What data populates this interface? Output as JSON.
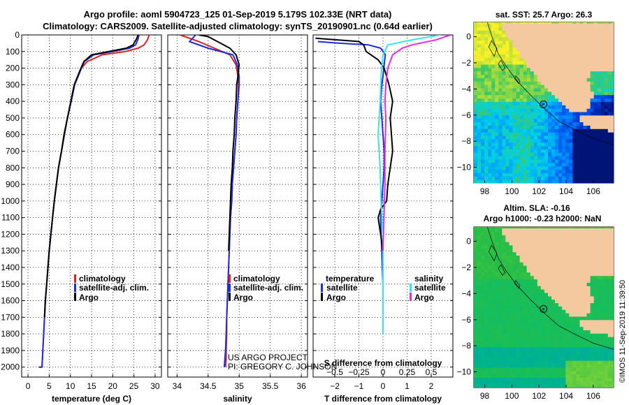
{
  "figure": {
    "title_line1": "Argo profile: aoml 5904723_125 01-Sep-2019 5.179S 102.33E (NRT data)",
    "title_line2": "Climatology: CARS2009. Satellite-adjusted climatology: synTS_20190901.nc (0.64d earlier)",
    "project_line1": "US ARGO PROJECT",
    "project_line2": "PI: GREGORY C. JOHNSON",
    "imos_stamp": "©IMOS 11-Sep-2019 11:39:50"
  },
  "colors": {
    "climatology": "#e02020",
    "satellite": "#1a2de0",
    "argo": "#000000",
    "satellite_salinity": "#33e6f0",
    "argo_salinity": "#e030e0",
    "land": "#f5c9a0"
  },
  "chart_data": [
    {
      "type": "line",
      "title": "",
      "xlabel": "temperature (deg C)",
      "ylabel": "",
      "xlim": [
        -1.5,
        31.5
      ],
      "ylim": [
        2060,
        0
      ],
      "xticks": [
        0,
        5,
        10,
        15,
        20,
        25,
        30
      ],
      "yticks": [
        0,
        100,
        200,
        300,
        400,
        500,
        600,
        700,
        800,
        900,
        1000,
        1100,
        1200,
        1300,
        1400,
        1500,
        1600,
        1700,
        1800,
        1900,
        2000
      ],
      "legend": [
        "climatology",
        "satellite-adj. clim.",
        "Argo"
      ],
      "series": [
        {
          "name": "climatology",
          "color_key": "climatology",
          "x": [
            28.6,
            28.2,
            27.4,
            26.0,
            23.0,
            17.5,
            14.0,
            12.6,
            11.8,
            11.0,
            10.2,
            9.3,
            8.6,
            7.9,
            7.2,
            6.7,
            6.2,
            5.8,
            5.4,
            5.0,
            4.7,
            4.4,
            4.1,
            3.9,
            3.7,
            3.5,
            3.3,
            3.1,
            2.8,
            2.6
          ],
          "y": [
            0,
            30,
            60,
            80,
            100,
            120,
            160,
            200,
            250,
            300,
            400,
            500,
            600,
            700,
            800,
            900,
            1000,
            1100,
            1200,
            1300,
            1400,
            1500,
            1600,
            1700,
            1800,
            1900,
            2000,
            2000,
            2000,
            2000
          ]
        },
        {
          "name": "satellite-adj. clim.",
          "color_key": "satellite",
          "x": [
            26.2,
            25.9,
            25.4,
            24.0,
            20.0,
            15.5,
            13.3,
            12.6,
            11.8,
            11.0,
            10.2,
            9.3,
            8.6,
            7.9,
            7.2,
            6.7,
            6.2,
            5.8,
            5.4,
            5.0,
            4.7,
            4.4,
            4.1,
            3.9,
            3.7,
            3.5,
            3.3,
            3.1,
            2.8,
            2.6
          ],
          "y": [
            0,
            30,
            60,
            80,
            100,
            120,
            160,
            200,
            250,
            300,
            400,
            500,
            600,
            700,
            800,
            900,
            1000,
            1100,
            1200,
            1300,
            1400,
            1500,
            1600,
            1700,
            1800,
            1900,
            2000,
            2000,
            2000,
            2000
          ]
        },
        {
          "name": "Argo",
          "color_key": "argo",
          "x": [
            26.0,
            25.5,
            24.8,
            23.2,
            19.0,
            15.0,
            13.2,
            12.5,
            11.7,
            10.9,
            10.1,
            9.3,
            8.5,
            7.9,
            7.2,
            6.7,
            6.2,
            5.8,
            5.4,
            5.0,
            4.7,
            4.4,
            4.1,
            3.9
          ],
          "y": [
            0,
            30,
            60,
            80,
            100,
            120,
            160,
            200,
            250,
            300,
            400,
            500,
            600,
            700,
            800,
            900,
            1000,
            1100,
            1200,
            1300,
            1400,
            1500,
            1600,
            1700
          ]
        }
      ]
    },
    {
      "type": "line",
      "title": "",
      "xlabel": "salinity",
      "ylabel": "",
      "xlim": [
        33.85,
        36.1
      ],
      "ylim": [
        2060,
        0
      ],
      "xticks": [
        34,
        34.5,
        35,
        35.5,
        36
      ],
      "legend": [
        "climatology",
        "satellite-adj. clim.",
        "Argo"
      ],
      "series": [
        {
          "name": "climatology",
          "color_key": "climatology",
          "x": [
            34.05,
            34.35,
            34.6,
            34.85,
            34.95,
            34.98,
            34.99,
            34.98,
            34.96,
            34.95,
            34.93,
            34.91,
            34.89,
            34.88,
            34.86,
            34.85,
            34.84,
            34.83,
            34.82,
            34.81,
            34.8,
            34.8,
            34.79,
            34.79,
            34.78
          ],
          "y": [
            0,
            40,
            80,
            120,
            180,
            250,
            300,
            400,
            500,
            600,
            700,
            800,
            900,
            1000,
            1100,
            1200,
            1300,
            1400,
            1500,
            1600,
            1700,
            1800,
            1900,
            1950,
            2000
          ]
        },
        {
          "name": "satellite-adj. clim.",
          "color_key": "satellite",
          "x": [
            34.3,
            34.2,
            34.5,
            34.9,
            34.97,
            35.0,
            35.0,
            34.98,
            34.96,
            34.95,
            34.93,
            34.91,
            34.89,
            34.88,
            34.86,
            34.85,
            34.84,
            34.83,
            34.82,
            34.81,
            34.8,
            34.79,
            34.78,
            34.77,
            34.76
          ],
          "y": [
            0,
            40,
            80,
            120,
            180,
            250,
            300,
            400,
            500,
            600,
            700,
            800,
            900,
            1000,
            1100,
            1200,
            1300,
            1400,
            1500,
            1600,
            1700,
            1800,
            1900,
            1950,
            2000
          ]
        },
        {
          "name": "Argo",
          "color_key": "argo",
          "x": [
            34.35,
            34.5,
            34.55,
            34.6,
            34.65,
            34.7,
            34.75,
            34.85,
            34.95,
            35.0,
            34.98,
            34.96,
            34.95,
            34.93,
            34.92,
            34.9,
            34.89,
            34.87,
            34.86,
            34.85,
            34.84,
            34.83
          ],
          "y": [
            0,
            10,
            20,
            30,
            40,
            50,
            60,
            80,
            120,
            180,
            250,
            300,
            400,
            500,
            600,
            700,
            800,
            900,
            1000,
            1100,
            1200,
            1300
          ]
        }
      ]
    },
    {
      "type": "line",
      "title": "S difference from climatology",
      "xlabel": "T difference from climatology",
      "ylabel": "",
      "xlim": [
        -2.9,
        2.9
      ],
      "ylim": [
        2060,
        0
      ],
      "xticks": [
        -2,
        -1,
        0,
        1,
        2
      ],
      "top_xticks": [
        -0.5,
        -0.25,
        0,
        0.25,
        0.5
      ],
      "top_xlim": [
        -0.725,
        0.725
      ],
      "legend": [
        "temperature",
        "satellite",
        "Argo",
        "salinity",
        "satellite",
        "Argo"
      ],
      "series": [
        {
          "name": "T satellite",
          "color_key": "satellite",
          "x": [
            -2.7,
            -1.8,
            -0.6,
            -0.1,
            0.1,
            0.05,
            0.0,
            -0.05,
            -0.1,
            -0.05,
            0.0,
            0.05,
            0.05,
            0.0,
            -0.05,
            -0.1,
            -0.08,
            -0.05,
            -0.03,
            0.0
          ],
          "y": [
            40,
            50,
            60,
            80,
            120,
            180,
            250,
            300,
            400,
            500,
            600,
            700,
            800,
            900,
            1000,
            1100,
            1200,
            1300,
            1400,
            1500
          ]
        },
        {
          "name": "T Argo",
          "color_key": "argo",
          "x": [
            -2.8,
            -1.0,
            -0.8,
            -0.7,
            -0.2,
            0.05,
            0.25,
            0.4,
            0.3,
            0.35,
            0.4,
            0.3,
            0.2,
            0.15,
            -0.1,
            -0.2,
            -0.1,
            0.0
          ],
          "y": [
            20,
            40,
            60,
            100,
            150,
            200,
            300,
            400,
            500,
            600,
            700,
            800,
            900,
            1000,
            1050,
            1100,
            1200,
            1300
          ]
        },
        {
          "name": "S satellite",
          "color_key": "satellite_salinity",
          "x": [
            0.6,
            0.3,
            0.05,
            0.0,
            -0.02,
            -0.03,
            -0.05,
            -0.03,
            -0.02,
            -0.01,
            0.0,
            0.0,
            0.0,
            0.0,
            0.0,
            0.0,
            0.0,
            0.0,
            0.0,
            0.0
          ],
          "y": [
            0,
            30,
            60,
            120,
            250,
            400,
            600,
            800,
            1000,
            1100,
            1200,
            1300,
            1400,
            1500,
            1550,
            1600,
            1650,
            1700,
            1750,
            1800
          ]
        },
        {
          "name": "S Argo",
          "color_key": "argo_salinity",
          "x": [
            0.7,
            0.55,
            0.3,
            0.2,
            0.1,
            0.05,
            0.03,
            0.02,
            0.03,
            0.02,
            0.02,
            0.0
          ],
          "y": [
            0,
            30,
            60,
            80,
            120,
            200,
            300,
            400,
            500,
            700,
            900,
            1300
          ]
        }
      ]
    },
    {
      "type": "heatmap",
      "title": "sat. SST: 25.7 Argo: 26.3",
      "xticks": [
        98,
        100,
        102,
        104,
        106
      ],
      "yticks": [
        0,
        -2,
        -4,
        -6,
        -8,
        -10
      ],
      "xlim": [
        97.2,
        107.5
      ],
      "ylim": [
        -11.2,
        1.1
      ],
      "float_position": {
        "lon": 102.33,
        "lat": -5.179
      }
    },
    {
      "type": "heatmap",
      "title_line1": "Altim. SLA: -0.16",
      "title_line2": "Argo h1000: -0.23 h2000: NaN",
      "xticks": [
        98,
        100,
        102,
        104,
        106
      ],
      "yticks": [
        0,
        -2,
        -4,
        -6,
        -8,
        -10
      ],
      "xlim": [
        97.2,
        107.5
      ],
      "ylim": [
        -11.2,
        1.1
      ],
      "float_position": {
        "lon": 102.33,
        "lat": -5.179
      }
    }
  ]
}
